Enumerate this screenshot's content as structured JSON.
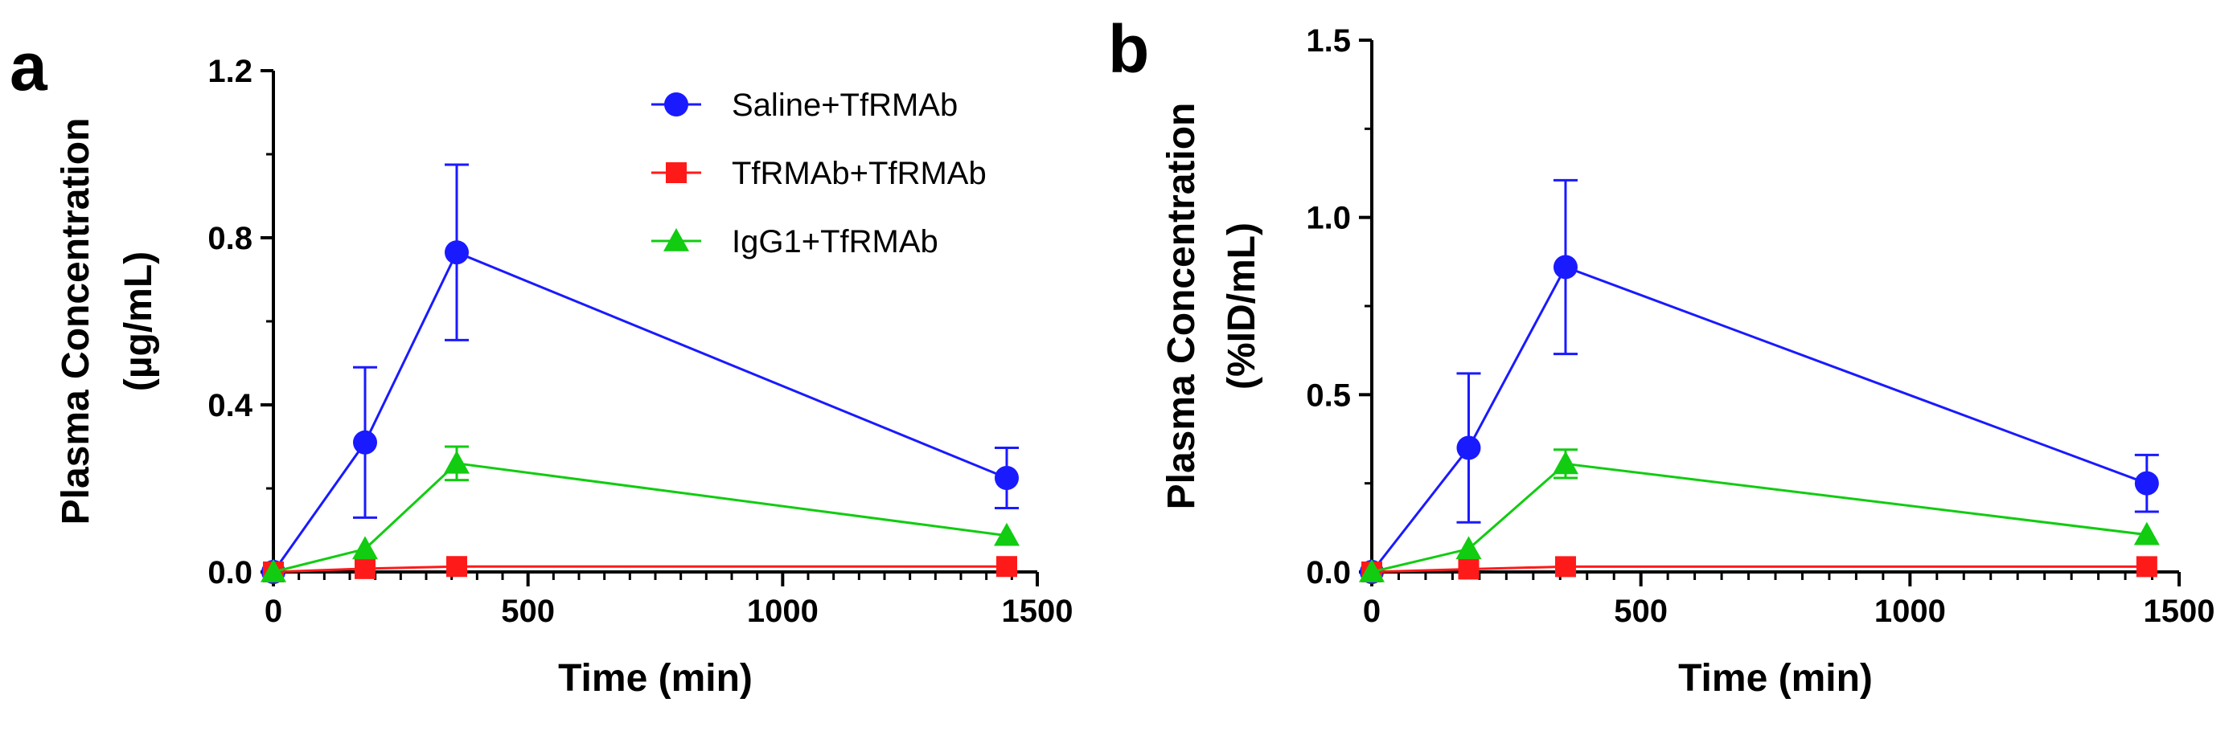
{
  "chart_data": [
    {
      "type": "line",
      "panel_label": "a",
      "title": "",
      "xlabel": "Time (min)",
      "ylabel_line1": "Plasma Concentration",
      "ylabel_line2": "(µg/mL)",
      "xlim": [
        0,
        1500
      ],
      "ylim": [
        0,
        1.2
      ],
      "xticks": [
        0,
        500,
        1000,
        1500
      ],
      "xtick_labels": [
        "0",
        "500",
        "1000",
        "1500"
      ],
      "yticks": [
        0,
        0.4,
        0.8,
        1.2
      ],
      "ytick_labels": [
        "0.0",
        "0.4",
        "0.8",
        "1.2"
      ],
      "grid": false,
      "legend": "top-right",
      "series": [
        {
          "name": "Saline+TfRMAb",
          "color": "#1a1aff",
          "marker": "circle",
          "x": [
            0,
            180,
            360,
            1440
          ],
          "y": [
            0,
            0.31,
            0.765,
            0.225
          ],
          "err": [
            0,
            0.18,
            0.21,
            0.072
          ]
        },
        {
          "name": "TfRMAb+TfRMAb",
          "color": "#ff1a1a",
          "marker": "square",
          "x": [
            0,
            180,
            360,
            1440
          ],
          "y": [
            0,
            0.008,
            0.013,
            0.013
          ],
          "err": [
            0,
            0,
            0,
            0
          ]
        },
        {
          "name": "IgG1+TfRMAb",
          "color": "#11cc11",
          "marker": "triangle",
          "x": [
            0,
            180,
            360,
            1440
          ],
          "y": [
            0,
            0.055,
            0.26,
            0.087
          ],
          "err": [
            0,
            0,
            0.04,
            0
          ]
        }
      ]
    },
    {
      "type": "line",
      "panel_label": "b",
      "title": "",
      "xlabel": "Time (min)",
      "ylabel_line1": "Plasma Concentration",
      "ylabel_line2": "(%ID/mL)",
      "xlim": [
        0,
        1500
      ],
      "ylim": [
        0,
        1.5
      ],
      "xticks": [
        0,
        500,
        1000,
        1500
      ],
      "xtick_labels": [
        "0",
        "500",
        "1000",
        "1500"
      ],
      "yticks": [
        0,
        0.5,
        1.0,
        1.5
      ],
      "ytick_labels": [
        "0.0",
        "0.5",
        "1.0",
        "1.5"
      ],
      "grid": false,
      "legend": "none",
      "series": [
        {
          "name": "Saline+TfRMAb",
          "color": "#1a1aff",
          "marker": "circle",
          "x": [
            0,
            180,
            360,
            1440
          ],
          "y": [
            0,
            0.35,
            0.86,
            0.25
          ],
          "err": [
            0,
            0.21,
            0.245,
            0.08
          ]
        },
        {
          "name": "TfRMAb+TfRMAb",
          "color": "#ff1a1a",
          "marker": "square",
          "x": [
            0,
            180,
            360,
            1440
          ],
          "y": [
            0,
            0.008,
            0.015,
            0.015
          ],
          "err": [
            0,
            0,
            0,
            0
          ]
        },
        {
          "name": "IgG1+TfRMAb",
          "color": "#11cc11",
          "marker": "triangle",
          "x": [
            0,
            180,
            360,
            1440
          ],
          "y": [
            0,
            0.065,
            0.305,
            0.105
          ],
          "err": [
            0,
            0,
            0.04,
            0
          ]
        }
      ]
    }
  ]
}
